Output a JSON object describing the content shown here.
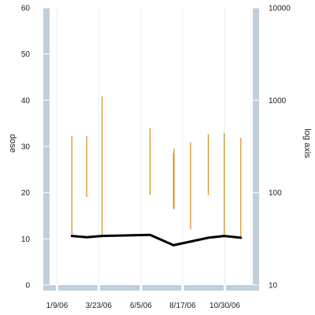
{
  "chart_data": {
    "type": "line",
    "title": "",
    "ylabel": "dose",
    "y2label": "log axis",
    "x_tick_labels": [
      "1/9/06",
      "3/23/06",
      "6/5/06",
      "8/17/06",
      "10/30/06"
    ],
    "x_tick_dates": [
      "2006-01-09",
      "2006-03-23",
      "2006-06-05",
      "2006-08-17",
      "2006-10-30"
    ],
    "xlim": [
      "2005-12-27",
      "2006-12-18"
    ],
    "ylim": [
      0,
      60
    ],
    "y_ticks": [
      0,
      10,
      20,
      30,
      40,
      50,
      60
    ],
    "y2lim": [
      10,
      10000
    ],
    "y2_scale": "log",
    "y2_ticks": [
      10,
      100,
      1000,
      10000
    ],
    "grid": "vertical",
    "colors": {
      "axis_band": "#c1cfdc",
      "dose_range": "#d88a16",
      "series_line": "#000000"
    },
    "series": [
      {
        "type": "range",
        "axis": "right",
        "points": [
          {
            "x": "2006-02-04",
            "low": 35,
            "high": 410
          },
          {
            "x": "2006-03-02",
            "low": 90,
            "high": 410
          },
          {
            "x": "2006-03-29",
            "low": 33,
            "high": 1100
          },
          {
            "x": "2006-06-21",
            "low": 95,
            "high": 500
          },
          {
            "x": "2006-08-01",
            "low": 68,
            "high": 270
          },
          {
            "x": "2006-08-02",
            "low": 66,
            "high": 300
          },
          {
            "x": "2006-08-31",
            "low": 40,
            "high": 350
          },
          {
            "x": "2006-10-01",
            "low": 94,
            "high": 430
          },
          {
            "x": "2006-10-29",
            "low": 33,
            "high": 440
          },
          {
            "x": "2006-11-27",
            "low": 32,
            "high": 390
          }
        ]
      },
      {
        "type": "line",
        "axis": "right",
        "x": [
          "2006-02-04",
          "2006-03-02",
          "2006-03-29",
          "2006-06-21",
          "2006-08-01",
          "2006-10-01",
          "2006-10-29",
          "2006-11-27"
        ],
        "y": [
          34.0,
          33.0,
          34.0,
          35.0,
          27.0,
          32.5,
          34.0,
          32.5
        ]
      }
    ]
  }
}
